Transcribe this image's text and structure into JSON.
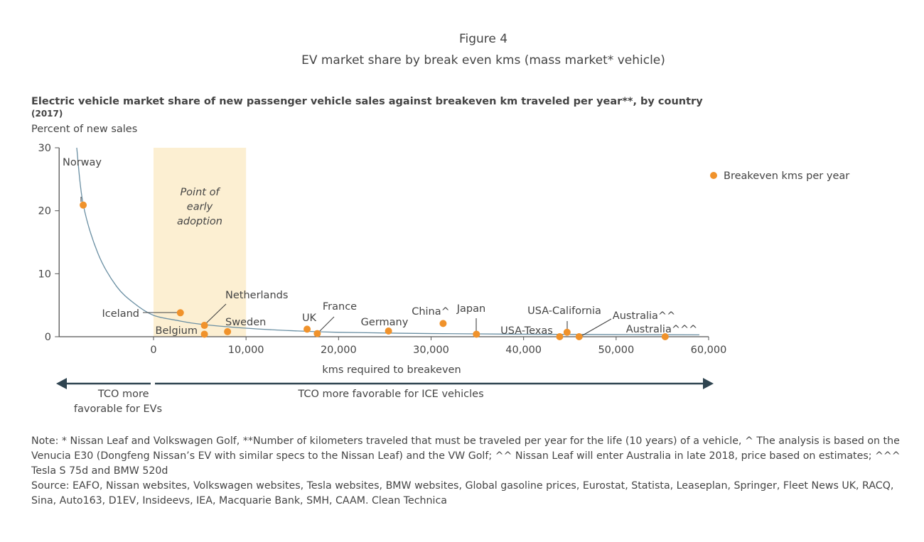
{
  "figure_label": "Figure 4",
  "figure_title": "EV market share by break even kms (mass market* vehicle)",
  "chart_data": {
    "type": "scatter",
    "title": "Electric vehicle market share of new passenger vehicle sales against breakeven km traveled per year**, by country",
    "subtitle": "(2017)",
    "ylabel": "Percent of new sales",
    "xlabel": "kms required to breakeven",
    "xlim": [
      -10000,
      60000
    ],
    "ylim": [
      0,
      30
    ],
    "x_ticks": [
      0,
      10000,
      20000,
      30000,
      40000,
      50000,
      60000
    ],
    "x_tick_labels": [
      "0",
      "10,000",
      "20,000",
      "30,000",
      "40,000",
      "50,000",
      "60,000"
    ],
    "y_ticks": [
      0,
      10,
      20,
      30
    ],
    "y_tick_labels": [
      "0",
      "10",
      "20",
      "30"
    ],
    "grid": false,
    "legend": {
      "label": "Breakeven kms per year",
      "placement": "right"
    },
    "series": [
      {
        "name": "Breakeven kms per year",
        "color": "#f0922b",
        "points": [
          {
            "label": "Norway",
            "x": -7600,
            "y": 20.9
          },
          {
            "label": "Iceland",
            "x": 2900,
            "y": 3.8
          },
          {
            "label": "Netherlands",
            "x": 5500,
            "y": 1.8
          },
          {
            "label": "Belgium",
            "x": 5500,
            "y": 0.4
          },
          {
            "label": "Sweden",
            "x": 8000,
            "y": 0.8
          },
          {
            "label": "UK",
            "x": 16600,
            "y": 1.2
          },
          {
            "label": "France",
            "x": 17700,
            "y": 0.5
          },
          {
            "label": "Germany",
            "x": 25400,
            "y": 0.9
          },
          {
            "label": "China^",
            "x": 31300,
            "y": 2.1
          },
          {
            "label": "Japan",
            "x": 34900,
            "y": 0.4
          },
          {
            "label": "USA-Texas",
            "x": 43900,
            "y": 0.0
          },
          {
            "label": "USA-California",
            "x": 44700,
            "y": 0.7
          },
          {
            "label": "Australia^^",
            "x": 46000,
            "y": 0.0
          },
          {
            "label": "Australia^^^",
            "x": 55300,
            "y": 0.0
          }
        ]
      }
    ],
    "trend_line": {
      "color": "#6a8fa3",
      "x": [
        -8300,
        -7600,
        -6000,
        -4000,
        -2000,
        0,
        2500,
        5000,
        10000,
        15000,
        20000,
        30000,
        40000,
        50000,
        59000
      ],
      "y": [
        30,
        21,
        13.2,
        8,
        5.2,
        3.4,
        2.6,
        2.0,
        1.35,
        0.95,
        0.7,
        0.5,
        0.4,
        0.33,
        0.3
      ]
    },
    "annotations": {
      "shaded_region": {
        "label": "Point of early adoption",
        "x_from": 0,
        "x_to": 10000,
        "color": "#fcefd2"
      },
      "left_arrow_label": "TCO more favorable for EVs",
      "right_arrow_label": "TCO more favorable for ICE vehicles",
      "arrow_color": "#2f4450"
    }
  },
  "notes": {
    "note": "Note:    * Nissan Leaf and Volkswagen Golf, **Number of kilometers traveled that must be traveled per year for the life (10 years) of a vehicle, ^ The analysis is based on the Venucia E30 (Dongfeng Nissan’s EV with similar specs to the Nissan Leaf) and the VW Golf; ^^ Nissan Leaf will enter Australia in late 2018, price based on estimates; ^^^ Tesla S 75d and BMW 520d",
    "source": "Source: EAFO, Nissan websites, Volkswagen websites, Tesla websites, BMW websites, Global gasoline prices, Eurostat, Statista, Leaseplan, Springer, Fleet News UK, RACQ, Sina, Auto163, D1EV, Insideevs, IEA, Macquarie Bank, SMH, CAAM. Clean Technica"
  }
}
